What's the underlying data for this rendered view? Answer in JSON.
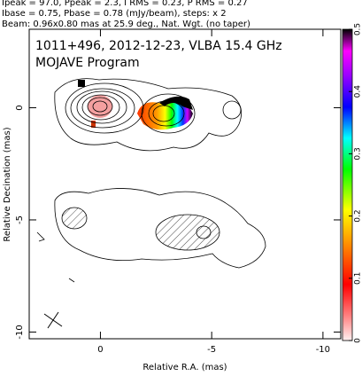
{
  "header": {
    "lines": [
      "Ipeak = 97.0, Ppeak = 2.3, I RMS = 0.23, P RMS = 0.27",
      "Ibase = 0.75, Pbase = 0.78 (mJy/beam), steps: x 2",
      "Beam: 0.96x0.80 mas at 25.9 deg., Nat. Wgt. (no taper)"
    ]
  },
  "chart_data": {
    "type": "contour",
    "title": "1011+496, 2012-12-23, VLBA 15.4 GHz",
    "subtitle": "MOJAVE Program",
    "x_label": "Relative R.A. (mas)",
    "y_label": "Relative Decination (mas)",
    "xlim": [
      3.2,
      -10.8
    ],
    "ylim": [
      -10.3,
      3.5
    ],
    "xticks": [
      0,
      -5,
      -10
    ],
    "yticks": [
      0,
      -5,
      -10
    ],
    "colorbar": {
      "lim": [
        0,
        0.5
      ],
      "ticks": [
        0,
        0.1,
        0.2,
        0.3,
        0.4,
        0.5
      ]
    }
  }
}
